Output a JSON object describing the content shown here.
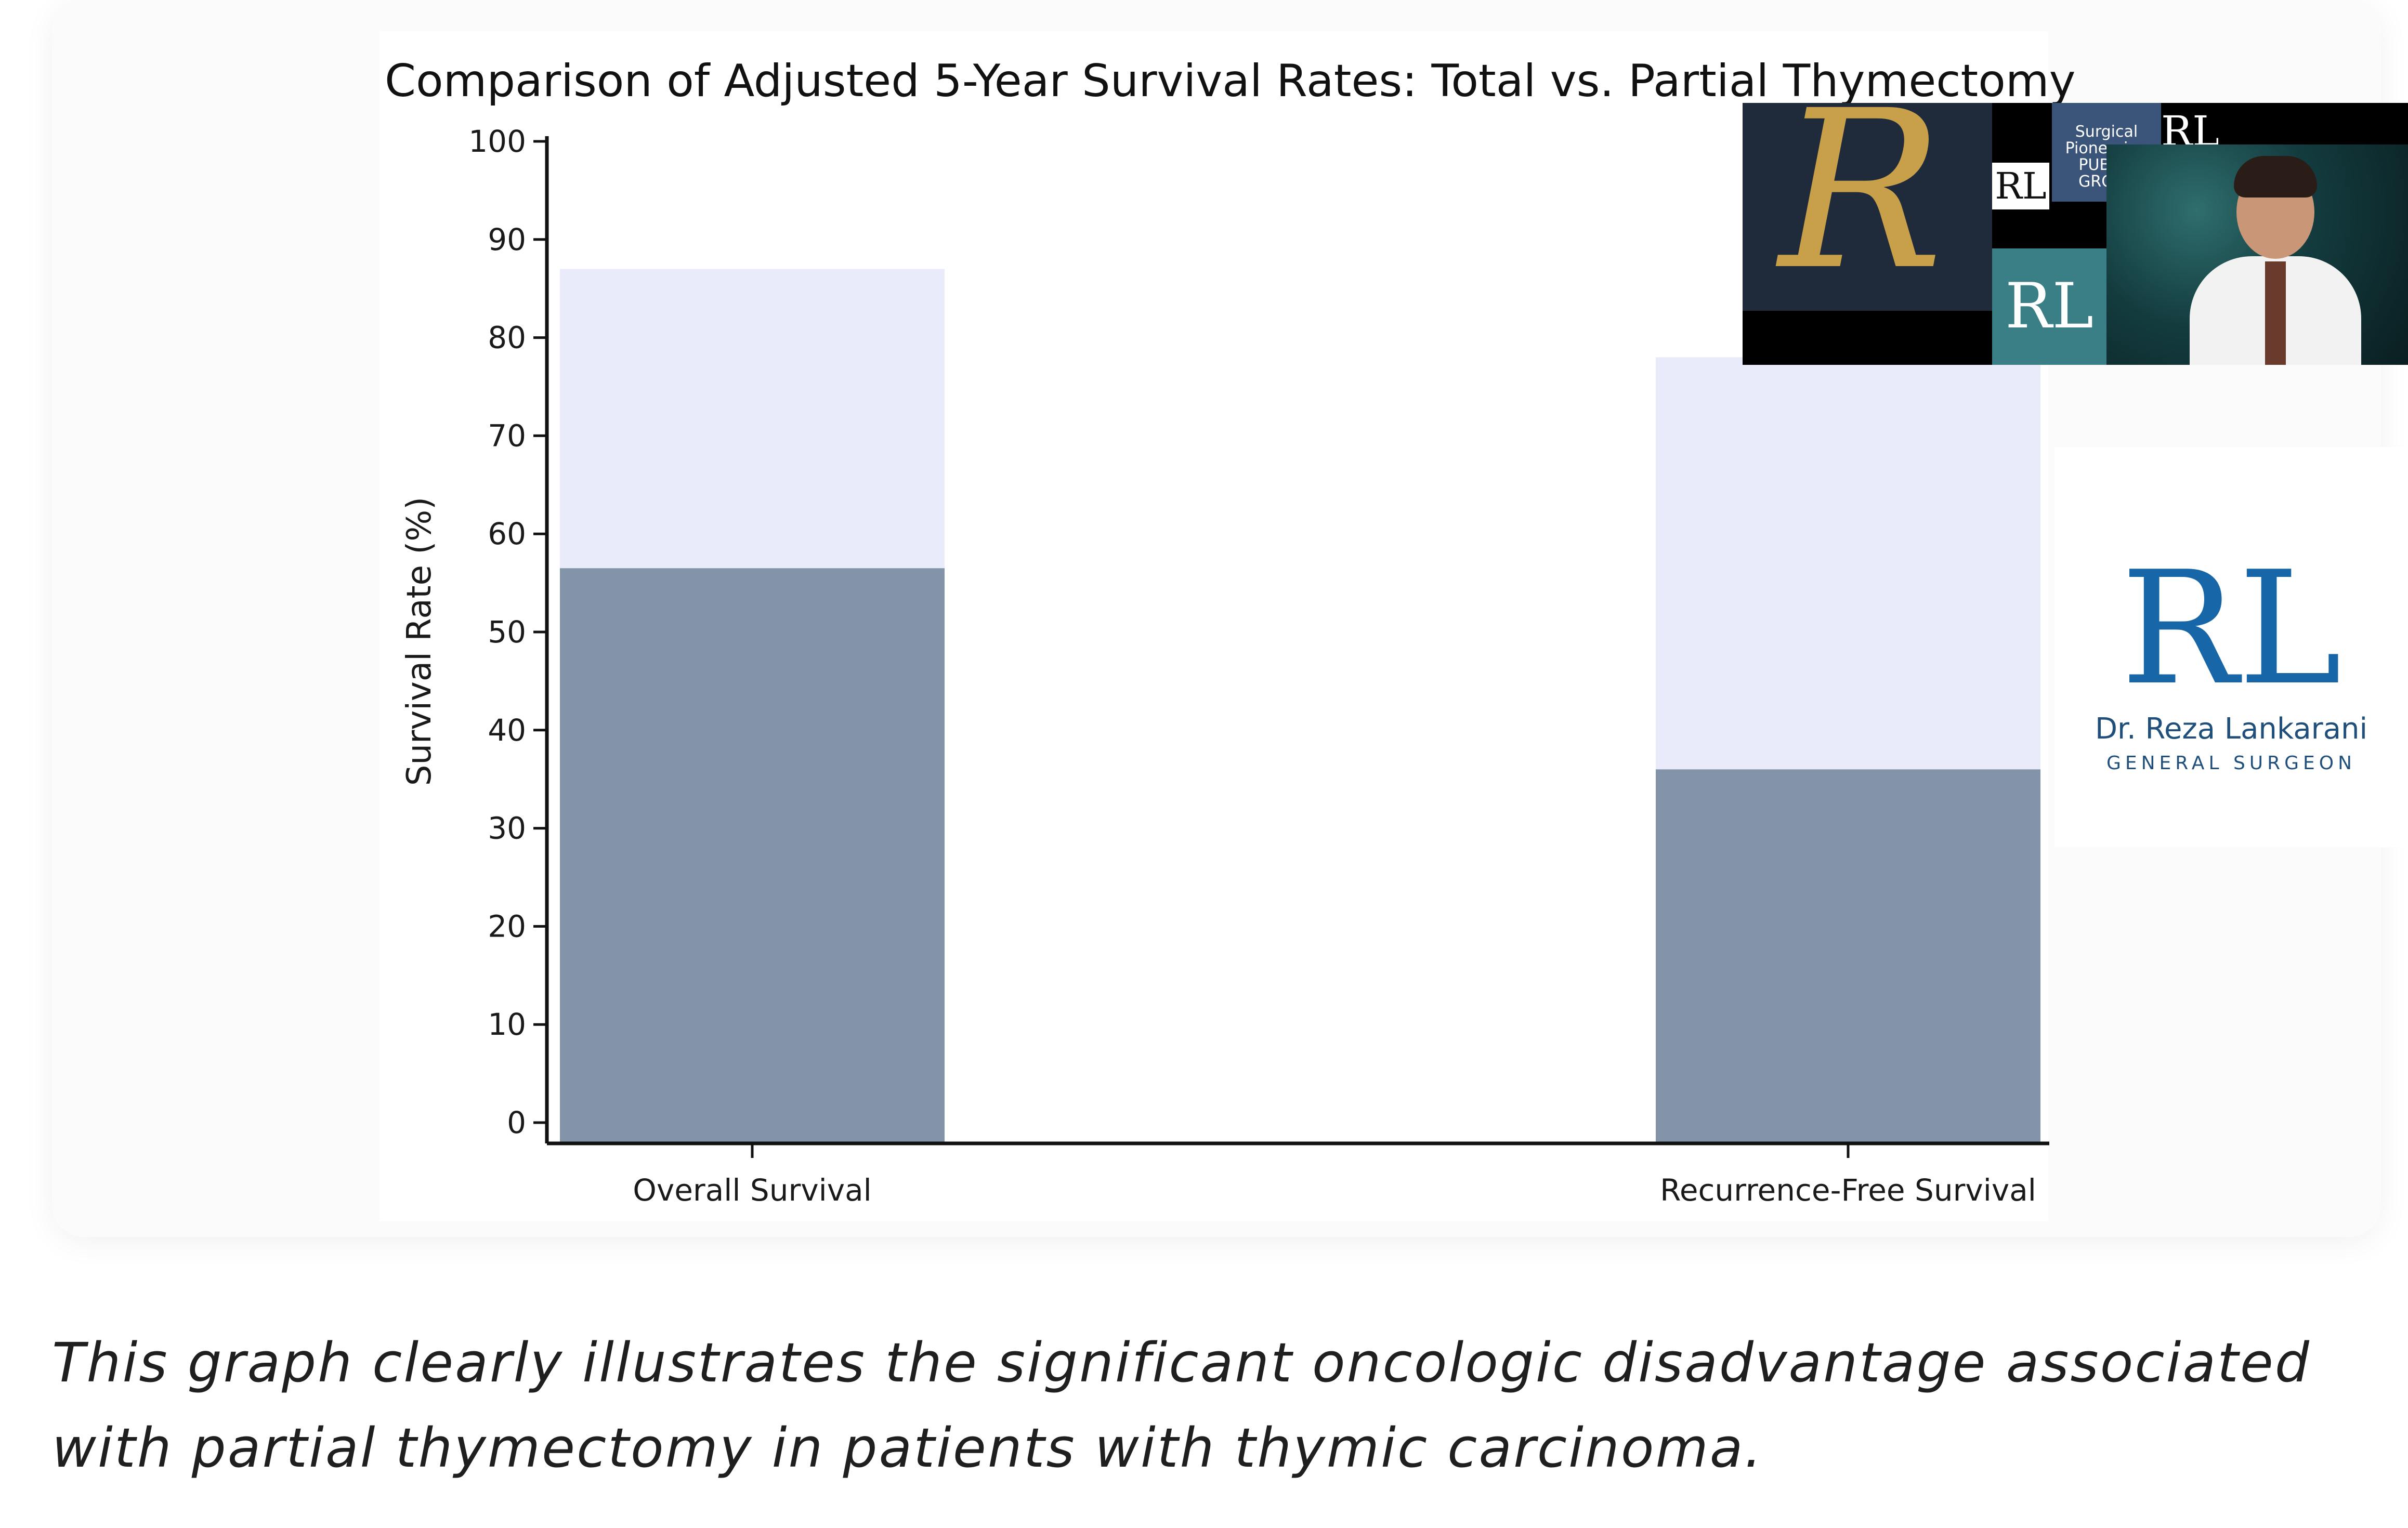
{
  "chart_data": {
    "type": "bar",
    "title": "Comparison of Adjusted 5-Year Survival Rates: Total vs. Partial Thymectomy",
    "xlabel": "",
    "ylabel": "Survival Rate (%)",
    "ylim": [
      0,
      100
    ],
    "yticks": [
      0,
      10,
      20,
      30,
      40,
      50,
      60,
      70,
      80,
      90,
      100
    ],
    "categories": [
      "Overall Survival",
      "Recurrence-Free Survival"
    ],
    "series": [
      {
        "values": [
          87,
          78
        ]
      },
      {
        "values": [
          56.5,
          36
        ]
      }
    ],
    "grid": false,
    "legend": "none",
    "colors": {
      "back": "#e9ebfb",
      "front": "#8494a8",
      "axis": "#111111"
    }
  },
  "overlay": {
    "video_tiles": {
      "surgical_text": "Surgical Pioneering PUBLIC GROUP",
      "r_logo_icon": "script-r-logo-icon",
      "rl_icon": "rl-monogram-icon"
    },
    "brand": {
      "mark": "RL",
      "name": "Dr. Reza Lankarani",
      "subtitle": "GENERAL SURGEON"
    }
  },
  "caption": "This graph clearly illustrates the significant oncologic disadvantage associated with partial thymectomy in patients with thymic carcinoma."
}
